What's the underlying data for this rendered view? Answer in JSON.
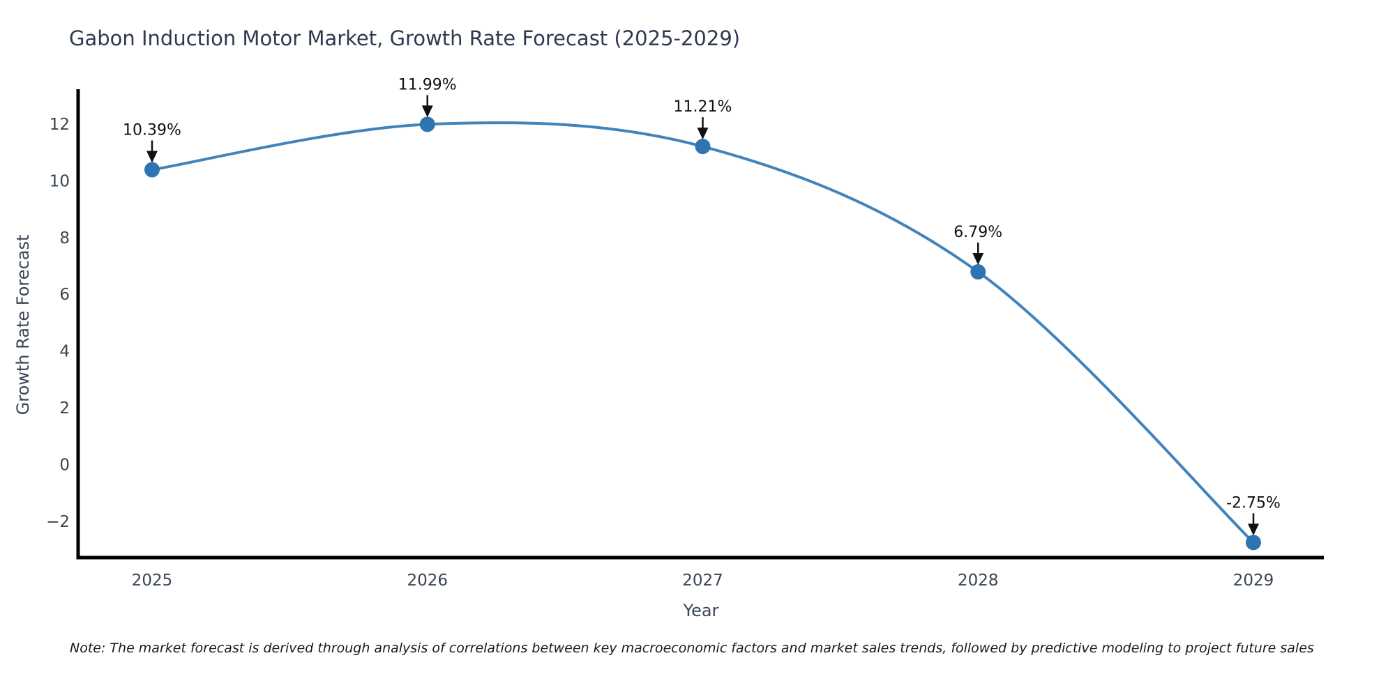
{
  "note": {
    "text": "Note: The market forecast is derived through analysis of correlations between key macroeconomic factors and market sales trends, followed by predictive modeling to project future sales"
  },
  "chart_data": {
    "type": "line",
    "title": "Gabon Induction Motor Market, Growth Rate Forecast (2025-2029)",
    "xlabel": "Year",
    "ylabel": "Growth Rate Forecast",
    "x": [
      2025,
      2026,
      2027,
      2028,
      2029
    ],
    "values": [
      10.39,
      11.99,
      11.21,
      6.79,
      -2.75
    ],
    "point_labels": [
      "10.39%",
      "11.99%",
      "11.21%",
      "6.79%",
      "-2.75%"
    ],
    "xtick_labels": [
      "2025",
      "2026",
      "2027",
      "2028",
      "2029"
    ],
    "yticks": [
      12,
      10,
      8,
      6,
      4,
      2,
      0,
      -2
    ],
    "ytick_labels": [
      "12",
      "10",
      "8",
      "6",
      "4",
      "2",
      "0",
      "−2"
    ],
    "ylim": [
      -3.3,
      13.2
    ],
    "grid": false,
    "legend": false,
    "colors": {
      "line": "#4283bb",
      "marker": "#2e74b0",
      "axis": "#000000",
      "tick_text": "#3a4554",
      "title_text": "#2e3a52",
      "annotation": "#111111"
    }
  }
}
